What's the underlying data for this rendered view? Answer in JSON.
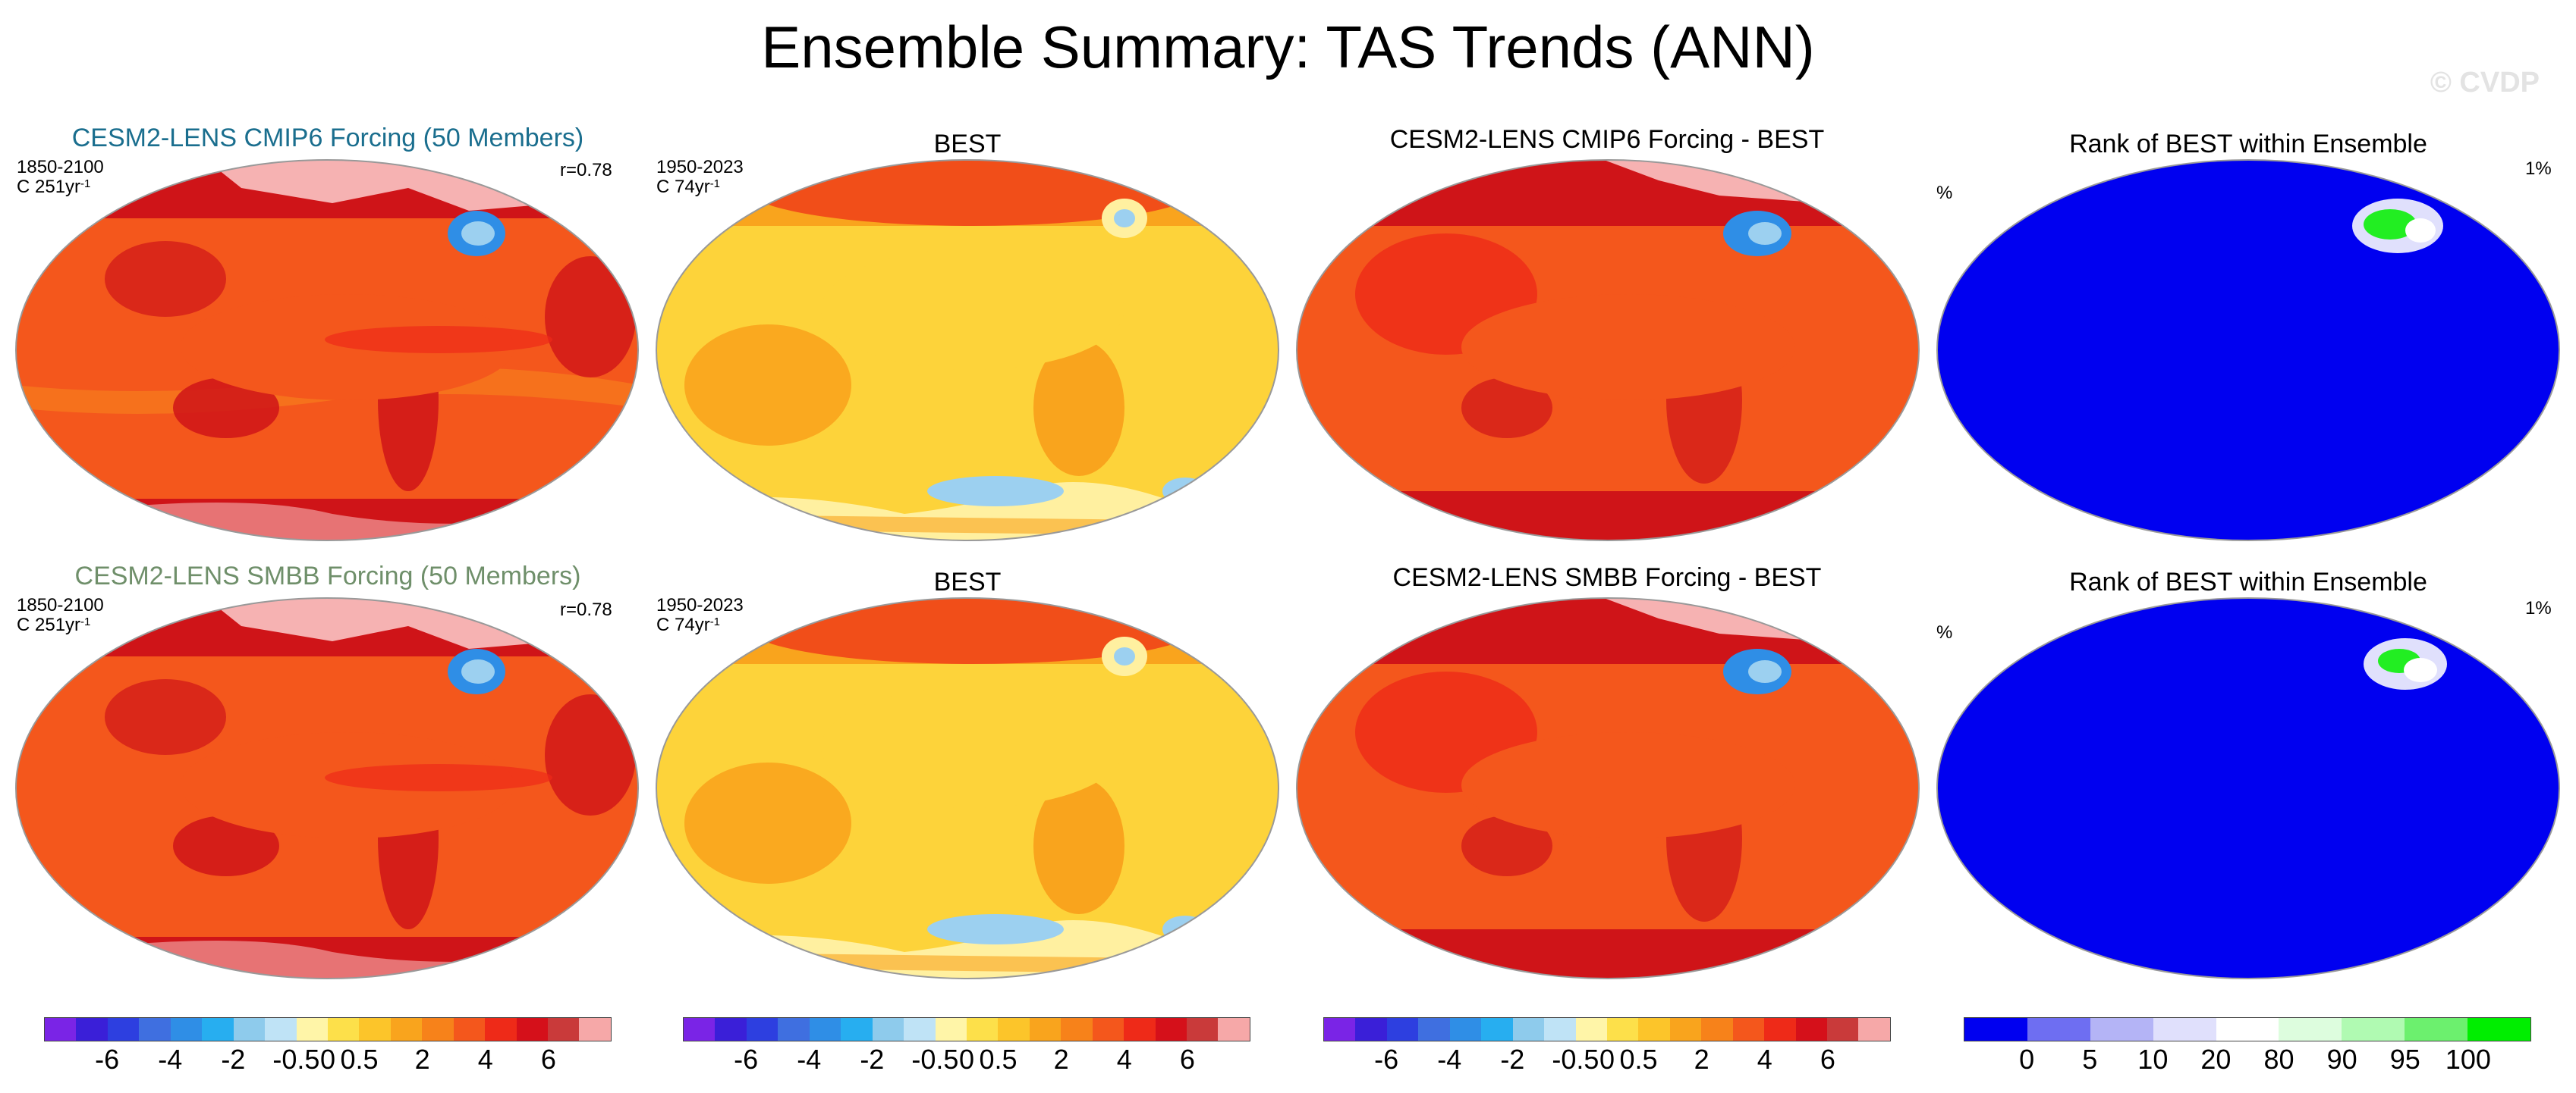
{
  "title": "Ensemble Summary: TAS Trends (ANN)",
  "watermark": "© CVDP",
  "rows": [
    {
      "panels": [
        {
          "title": "CESM2-LENS CMIP6 Forcing (50 Members)",
          "left_top": "1850-2100",
          "left_bottom_prefix": "C 251yr",
          "left_bottom_sup": "-1",
          "right": "r=0.78"
        },
        {
          "title": "BEST",
          "left_top": "1950-2023",
          "left_bottom_prefix": "C 74yr",
          "left_bottom_sup": "-1"
        },
        {
          "title": "CESM2-LENS CMIP6 Forcing - BEST"
        },
        {
          "title": "Rank of BEST within Ensemble",
          "left": "%",
          "right": "1%"
        }
      ]
    },
    {
      "panels": [
        {
          "title": "CESM2-LENS SMBB Forcing (50 Members)",
          "left_top": "1850-2100",
          "left_bottom_prefix": "C 251yr",
          "left_bottom_sup": "-1",
          "right": "r=0.78"
        },
        {
          "title": "BEST",
          "left_top": "1950-2023",
          "left_bottom_prefix": "C 74yr",
          "left_bottom_sup": "-1"
        },
        {
          "title": "CESM2-LENS SMBB Forcing - BEST"
        },
        {
          "title": "Rank of BEST within Ensemble",
          "left": "%",
          "right": "1%"
        }
      ]
    }
  ],
  "colorbars": {
    "trend": {
      "colors": [
        "#7a24e6",
        "#3a1fd8",
        "#2d3fe0",
        "#3f6fe0",
        "#2f8ee6",
        "#27aef0",
        "#8ecbec",
        "#bfe3f6",
        "#fff5a8",
        "#fde04a",
        "#fcc52a",
        "#f9a41d",
        "#f7821a",
        "#f4571c",
        "#ee2a18",
        "#d5101a",
        "#c93a3a",
        "#f6a8a8"
      ],
      "ticks": [
        "-6",
        "-4",
        "-2",
        "-0.5",
        "0",
        "0.5",
        "2",
        "4",
        "6"
      ]
    },
    "rank": {
      "colors": [
        "#0000f0",
        "#6e6ef2",
        "#b4b4f6",
        "#e0e0fc",
        "#ffffff",
        "#ddfdde",
        "#b0fab2",
        "#6cf06e",
        "#00ee00"
      ],
      "ticks": [
        "0",
        "5",
        "10",
        "20",
        "80",
        "90",
        "95",
        "100"
      ]
    }
  },
  "palette": {
    "deep_red": "#cf1418",
    "red": "#ee2a18",
    "orange_red": "#f4571c",
    "orange": "#f9a41d",
    "yellow": "#fdd33a",
    "pale_yellow": "#fff0a0",
    "pink": "#f6b2b2",
    "light_blue": "#9cd0f0",
    "blue": "#2f8ee6",
    "rank_blue": "#0000f0",
    "rank_green": "#22ee22",
    "map_outline": "#999999"
  }
}
